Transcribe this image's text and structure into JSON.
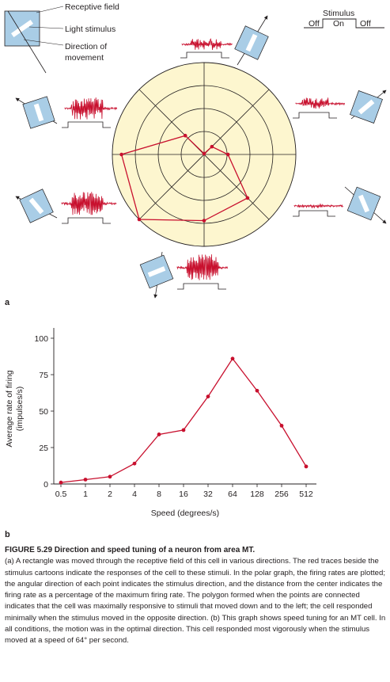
{
  "panel_a": {
    "label": "a",
    "legend": {
      "receptive_field": "Receptive field",
      "light_stimulus": "Light stimulus",
      "direction": "Direction of",
      "movement": "movement"
    },
    "stimulus_key": {
      "title": "Stimulus",
      "off1": "Off",
      "on": "On",
      "off2": "Off"
    }
  },
  "panel_b": {
    "label": "b"
  },
  "caption": {
    "title": "FIGURE 5.29 Direction and speed tuning of a neuron from area MT.",
    "body": "(a) A rectangle was moved through the receptive field of this cell in various directions. The red traces beside the stimulus cartoons indicate the responses of the cell to these stimuli. In the polar graph, the firing rates are plotted; the angular direction of each point indicates the stimulus direction, and the distance from the center indicates the firing rate as a percentage of the maximum firing rate. The polygon formed when the points are connected indicates that the cell was maximally responsive to stimuli that moved down and to the left; the cell responded minimally when the stimulus moved in the opposite direction. (b) This graph shows speed tuning for an MT cell. In all conditions, the motion was in the optimal direction. This cell responded most vigorously when the stimulus moved at a speed of 64° per second."
  },
  "colors": {
    "polar_fill": "#fdf6cf",
    "response": "#c8102e",
    "cartoon": "#a9cde6",
    "ink": "#231f20"
  },
  "chart_data": [
    {
      "type": "polar",
      "directions_deg": [
        90,
        45,
        0,
        315,
        270,
        225,
        180,
        135
      ],
      "values_pct": [
        0.9,
        12,
        26,
        67,
        72,
        100,
        90,
        29
      ],
      "rlim": [
        0,
        100
      ],
      "grid": true
    },
    {
      "type": "line",
      "x": [
        "0.5",
        "1",
        "2",
        "4",
        "8",
        "16",
        "32",
        "64",
        "128",
        "256",
        "512"
      ],
      "y": [
        1,
        3,
        5,
        14,
        34,
        37,
        60,
        86,
        64,
        40,
        12
      ],
      "xlabel": "Speed (degrees/s)",
      "ylabel": "Average rate of firing",
      "ylabel2": "(impulses/s)",
      "yticks": [
        0,
        25,
        50,
        75,
        100
      ],
      "ylim": [
        0,
        100
      ]
    }
  ]
}
